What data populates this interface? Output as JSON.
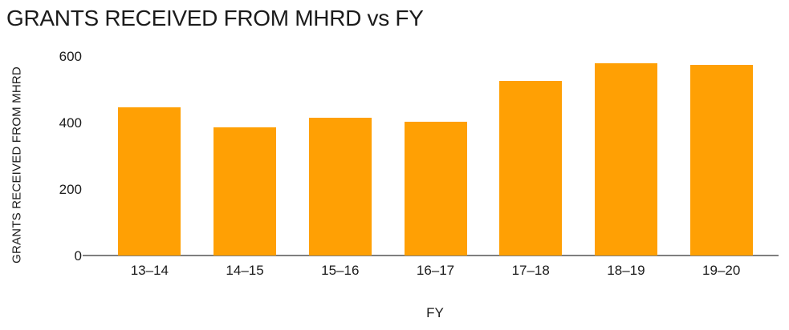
{
  "title": "GRANTS RECEIVED FROM MHRD vs FY",
  "colors": {
    "bar": "#FFA004",
    "axis_line": "#7F7F7F",
    "text": "#1B1B1B",
    "background": "#FFFFFF"
  },
  "chart_data": {
    "type": "bar",
    "title": "GRANTS RECEIVED FROM MHRD vs FY",
    "xlabel": "FY",
    "ylabel": "GRANTS RECEIVED FROM MHRD",
    "categories": [
      "13–14",
      "14–15",
      "15–16",
      "16–17",
      "17–18",
      "18–19",
      "19–20"
    ],
    "values": [
      448,
      387,
      417,
      404,
      527,
      582,
      577
    ],
    "ylim": [
      0,
      600
    ],
    "yticks": [
      0,
      200,
      400,
      600
    ],
    "bar_color": "#FFA004",
    "grid": false,
    "legend_position": "none"
  }
}
